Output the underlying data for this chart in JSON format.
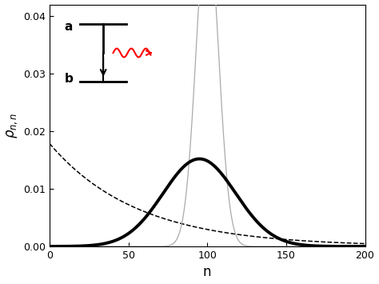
{
  "n_max": 200,
  "n_pts": 2000,
  "thermal_nbar": 55,
  "coherent_n0": 100,
  "fock_sigma": 7.0,
  "mixed_n0": 95,
  "mixed_sigma": 23,
  "mixed_peak": 0.0152,
  "xlim": [
    0,
    200
  ],
  "ylim": [
    0,
    0.042
  ],
  "yticks": [
    0,
    0.01,
    0.02,
    0.03,
    0.04
  ],
  "xticks": [
    0,
    50,
    100,
    150,
    200
  ],
  "xlabel": "n",
  "background_color": "#ffffff",
  "thin_color": "#aaaaaa",
  "thick_color": "#000000",
  "dashed_color": "#000000"
}
